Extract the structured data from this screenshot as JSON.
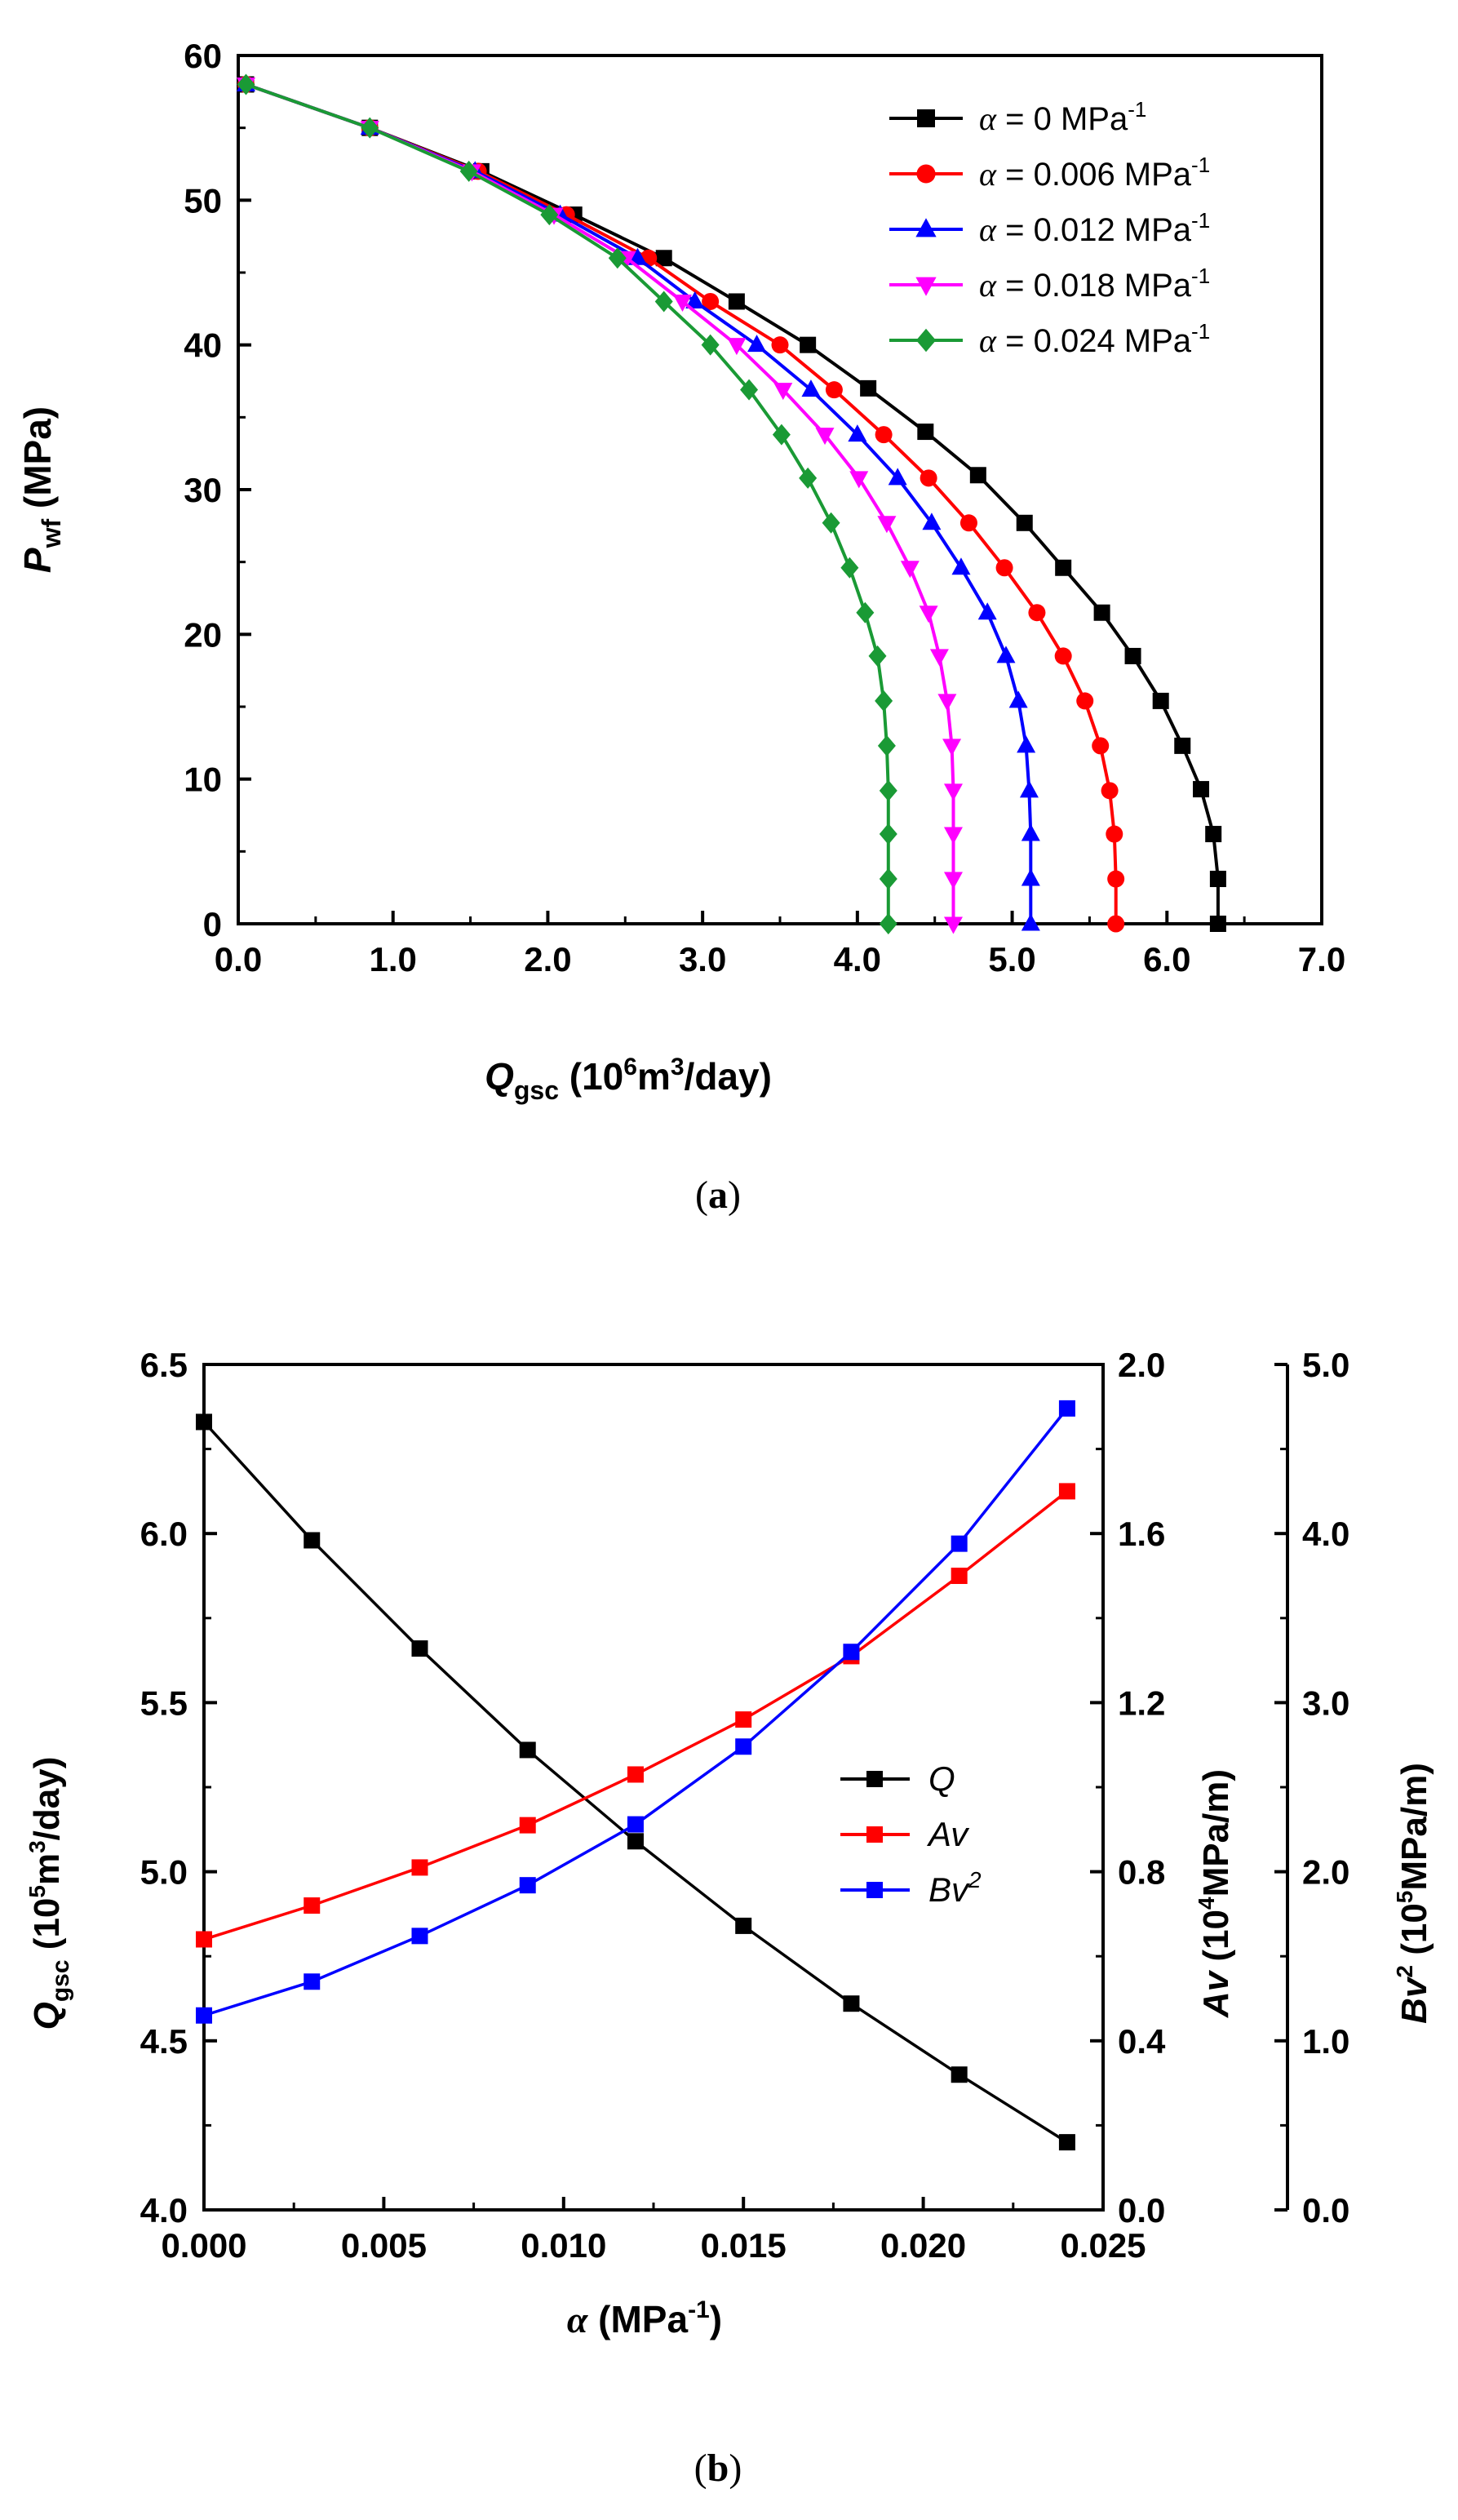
{
  "chart_data": [
    {
      "type": "line",
      "panel": "(a)",
      "caption": "a",
      "xlabel": {
        "main": "Q",
        "sub": "gsc",
        "unit_pre": " (10",
        "unit_sup": "6",
        "unit_mid": "m",
        "unit_sup2": "3",
        "unit_post": "/day)"
      },
      "ylabel": {
        "main": "P",
        "sub": "wf",
        "unit": " (MPa)"
      },
      "xlim": [
        0,
        7
      ],
      "ylim": [
        0,
        60
      ],
      "xticks": [
        "0.0",
        "1.0",
        "2.0",
        "3.0",
        "4.0",
        "5.0",
        "6.0",
        "7.0"
      ],
      "yticks": [
        "0",
        "10",
        "20",
        "30",
        "40",
        "50",
        "60"
      ],
      "legend_position": "top-right",
      "series": [
        {
          "name": "α = 0 MPa-1",
          "alpha_value": "0",
          "color": "#000000",
          "marker": "square",
          "points": [
            [
              0.05,
              58.0
            ],
            [
              0.85,
              55.0
            ],
            [
              1.57,
              52.0
            ],
            [
              2.17,
              49.0
            ],
            [
              2.75,
              46.0
            ],
            [
              3.22,
              43.0
            ],
            [
              3.68,
              40.0
            ],
            [
              4.07,
              37.0
            ],
            [
              4.44,
              34.0
            ],
            [
              4.78,
              31.0
            ],
            [
              5.08,
              27.7
            ],
            [
              5.33,
              24.6
            ],
            [
              5.58,
              21.5
            ],
            [
              5.78,
              18.5
            ],
            [
              5.96,
              15.4
            ],
            [
              6.1,
              12.3
            ],
            [
              6.22,
              9.3
            ],
            [
              6.3,
              6.2
            ],
            [
              6.33,
              3.1
            ],
            [
              6.33,
              0.0
            ]
          ]
        },
        {
          "name": "α = 0.006 MPa-1",
          "alpha_value": "0.006",
          "color": "#ff0000",
          "marker": "circle",
          "points": [
            [
              0.05,
              58.0
            ],
            [
              0.85,
              55.0
            ],
            [
              1.55,
              52.0
            ],
            [
              2.12,
              49.0
            ],
            [
              2.65,
              46.0
            ],
            [
              3.05,
              43.0
            ],
            [
              3.5,
              40.0
            ],
            [
              3.85,
              36.9
            ],
            [
              4.17,
              33.8
            ],
            [
              4.46,
              30.8
            ],
            [
              4.72,
              27.7
            ],
            [
              4.95,
              24.6
            ],
            [
              5.16,
              21.5
            ],
            [
              5.33,
              18.5
            ],
            [
              5.47,
              15.4
            ],
            [
              5.57,
              12.3
            ],
            [
              5.63,
              9.2
            ],
            [
              5.66,
              6.2
            ],
            [
              5.67,
              3.1
            ],
            [
              5.67,
              0.0
            ]
          ]
        },
        {
          "name": "α = 0.012 MPa-1",
          "alpha_value": "0.012",
          "color": "#0000ff",
          "marker": "triangle-up",
          "points": [
            [
              0.05,
              58.0
            ],
            [
              0.85,
              55.0
            ],
            [
              1.53,
              52.0
            ],
            [
              2.08,
              49.0
            ],
            [
              2.58,
              46.0
            ],
            [
              2.95,
              43.0
            ],
            [
              3.35,
              40.0
            ],
            [
              3.7,
              36.9
            ],
            [
              4.0,
              33.8
            ],
            [
              4.26,
              30.8
            ],
            [
              4.48,
              27.7
            ],
            [
              4.67,
              24.6
            ],
            [
              4.84,
              21.5
            ],
            [
              4.96,
              18.5
            ],
            [
              5.04,
              15.4
            ],
            [
              5.09,
              12.3
            ],
            [
              5.11,
              9.2
            ],
            [
              5.12,
              6.2
            ],
            [
              5.12,
              3.1
            ],
            [
              5.12,
              0.0
            ]
          ]
        },
        {
          "name": "α = 0.018 MPa-1",
          "alpha_value": "0.018",
          "color": "#ff00ff",
          "marker": "triangle-down",
          "points": [
            [
              0.05,
              58.0
            ],
            [
              0.85,
              55.0
            ],
            [
              1.51,
              52.0
            ],
            [
              2.04,
              49.0
            ],
            [
              2.51,
              46.0
            ],
            [
              2.87,
              43.0
            ],
            [
              3.22,
              40.0
            ],
            [
              3.52,
              36.9
            ],
            [
              3.79,
              33.8
            ],
            [
              4.01,
              30.8
            ],
            [
              4.19,
              27.7
            ],
            [
              4.34,
              24.6
            ],
            [
              4.46,
              21.5
            ],
            [
              4.53,
              18.5
            ],
            [
              4.58,
              15.4
            ],
            [
              4.61,
              12.3
            ],
            [
              4.62,
              9.2
            ],
            [
              4.62,
              6.2
            ],
            [
              4.62,
              3.1
            ],
            [
              4.62,
              0.0
            ]
          ]
        },
        {
          "name": "α = 0.024 MPa-1",
          "alpha_value": "0.024",
          "color": "#1a9a35",
          "marker": "diamond",
          "points": [
            [
              0.05,
              58.0
            ],
            [
              0.85,
              55.0
            ],
            [
              1.49,
              52.0
            ],
            [
              2.01,
              49.0
            ],
            [
              2.45,
              46.0
            ],
            [
              2.75,
              43.0
            ],
            [
              3.05,
              40.0
            ],
            [
              3.3,
              36.9
            ],
            [
              3.51,
              33.8
            ],
            [
              3.68,
              30.8
            ],
            [
              3.83,
              27.7
            ],
            [
              3.95,
              24.6
            ],
            [
              4.05,
              21.5
            ],
            [
              4.13,
              18.5
            ],
            [
              4.17,
              15.4
            ],
            [
              4.19,
              12.3
            ],
            [
              4.2,
              9.2
            ],
            [
              4.2,
              6.2
            ],
            [
              4.2,
              3.1
            ],
            [
              4.2,
              0.0
            ]
          ]
        }
      ]
    },
    {
      "type": "line",
      "panel": "(b)",
      "caption": "b",
      "xlabel": {
        "main": "α",
        "unit_pre": " (MPa",
        "unit_sup": "-1",
        "unit_post": ")"
      },
      "xlim": [
        0,
        0.025
      ],
      "xticks": [
        "0.000",
        "0.005",
        "0.010",
        "0.015",
        "0.020",
        "0.025"
      ],
      "axes": [
        {
          "id": "left",
          "label_main": "Q",
          "label_sub": "gsc",
          "unit_pre": " (10",
          "unit_sup": "5",
          "unit_mid": "m",
          "unit_sup2": "3",
          "unit_post": "/day)",
          "ylim": [
            4.0,
            6.5
          ],
          "ticks": [
            "4.0",
            "4.5",
            "5.0",
            "5.5",
            "6.0",
            "6.5"
          ]
        },
        {
          "id": "right1",
          "label_main": "Av",
          "unit_pre": " (10",
          "unit_sup": "4",
          "unit_post": "MPa/m)",
          "ylim": [
            0.0,
            2.0
          ],
          "ticks": [
            "0.0",
            "0.4",
            "0.8",
            "1.2",
            "1.6",
            "2.0"
          ]
        },
        {
          "id": "right2",
          "label_main": "Bv",
          "label_sup": "2",
          "unit_pre": " (10",
          "unit_sup": "5",
          "unit_post": "MPa/m)",
          "ylim": [
            0.0,
            5.0
          ],
          "ticks": [
            "0.0",
            "1.0",
            "2.0",
            "3.0",
            "4.0",
            "5.0"
          ]
        }
      ],
      "legend_position": "center-right",
      "x": [
        0.0,
        0.003,
        0.006,
        0.009,
        0.012,
        0.015,
        0.018,
        0.021,
        0.024
      ],
      "series": [
        {
          "name": "Q",
          "axis": "left",
          "color": "#000000",
          "values": [
            6.33,
            5.98,
            5.66,
            5.36,
            5.09,
            4.84,
            4.61,
            4.4,
            4.2
          ]
        },
        {
          "name": "Av",
          "axis": "right1",
          "color": "#ff0000",
          "values": [
            0.64,
            0.72,
            0.81,
            0.91,
            1.03,
            1.16,
            1.31,
            1.5,
            1.7
          ]
        },
        {
          "name": "Bv",
          "sup": "2",
          "axis": "right2",
          "color": "#0000ff",
          "values": [
            1.15,
            1.35,
            1.62,
            1.92,
            2.28,
            2.74,
            3.3,
            3.94,
            4.74
          ]
        }
      ]
    }
  ]
}
